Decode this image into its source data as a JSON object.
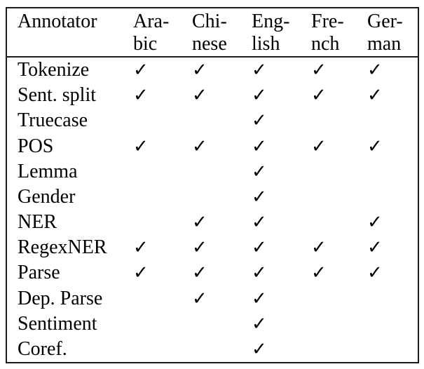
{
  "colors": {
    "border": "#1c1c1c",
    "text": "#000000",
    "background": "#ffffff"
  },
  "check_glyph": "✓",
  "table": {
    "header": {
      "annotator_label": "Annotator",
      "languages": [
        {
          "top": "Ara-",
          "bottom": "bic"
        },
        {
          "top": "Chi-",
          "bottom": "nese"
        },
        {
          "top": "Eng-",
          "bottom": "lish"
        },
        {
          "top": "Fre-",
          "bottom": "nch"
        },
        {
          "top": "Ger-",
          "bottom": "man"
        }
      ]
    },
    "rows": [
      {
        "label": "Tokenize",
        "checks": [
          "✓",
          "✓",
          "✓",
          "✓",
          "✓"
        ]
      },
      {
        "label": "Sent. split",
        "checks": [
          "✓",
          "✓",
          "✓",
          "✓",
          "✓"
        ]
      },
      {
        "label": "Truecase",
        "checks": [
          "",
          "",
          "✓",
          "",
          ""
        ]
      },
      {
        "label": "POS",
        "checks": [
          "✓",
          "✓",
          "✓",
          "✓",
          "✓"
        ]
      },
      {
        "label": "Lemma",
        "checks": [
          "",
          "",
          "✓",
          "",
          ""
        ]
      },
      {
        "label": "Gender",
        "checks": [
          "",
          "",
          "✓",
          "",
          ""
        ]
      },
      {
        "label": "NER",
        "checks": [
          "",
          "✓",
          "✓",
          "",
          "✓"
        ]
      },
      {
        "label": "RegexNER",
        "checks": [
          "✓",
          "✓",
          "✓",
          "✓",
          "✓"
        ]
      },
      {
        "label": "Parse",
        "checks": [
          "✓",
          "✓",
          "✓",
          "✓",
          "✓"
        ]
      },
      {
        "label": "Dep. Parse",
        "checks": [
          "",
          "✓",
          "✓",
          "",
          ""
        ]
      },
      {
        "label": "Sentiment",
        "checks": [
          "",
          "",
          "✓",
          "",
          ""
        ]
      },
      {
        "label": "Coref.",
        "checks": [
          "",
          "",
          "✓",
          "",
          ""
        ]
      }
    ]
  }
}
